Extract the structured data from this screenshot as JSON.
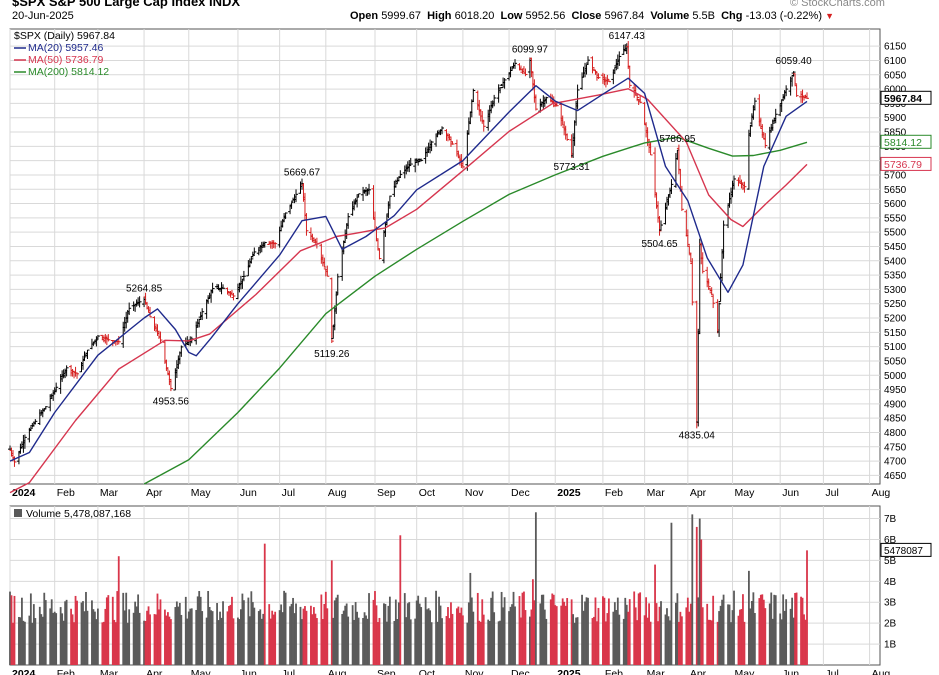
{
  "header": {
    "symbol_title": "$SPX S&P 500 Large Cap Index INDX",
    "date": "20-Jun-2025",
    "open_label": "Open",
    "open": "5999.67",
    "high_label": "High",
    "high": "6018.20",
    "low_label": "Low",
    "low": "5952.56",
    "close_label": "Close",
    "close": "5967.84",
    "volume_label": "Volume",
    "volume": "5.5B",
    "chg_label": "Chg",
    "chg": "-13.03 (-0.22%)",
    "watermark": "© StockCharts.com"
  },
  "colors": {
    "up": "#000000",
    "down": "#d62020",
    "ma20": "#1f2a8c",
    "ma50": "#d6364f",
    "ma200": "#2a8a2a",
    "grid": "#d9d9d9",
    "vol_up": "#5a5a5a",
    "vol_down": "#d9364a"
  },
  "chart_data": [
    {
      "type": "candlestick",
      "legend": [
        {
          "key": "price",
          "label": "$SPX (Daily) 5967.84",
          "color": "#000000"
        },
        {
          "key": "ma20",
          "label": "MA(20) 5957.46",
          "color": "#1f2a8c"
        },
        {
          "key": "ma50",
          "label": "MA(50) 5736.79",
          "color": "#d6364f"
        },
        {
          "key": "ma200",
          "label": "MA(200) 5814.12",
          "color": "#2a8a2a"
        }
      ],
      "legend_position": "top-left",
      "grid": true,
      "x_ticks": [
        "2024",
        "Feb",
        "Mar",
        "Apr",
        "May",
        "Jun",
        "Jul",
        "Aug",
        "Sep",
        "Oct",
        "Nov",
        "Dec",
        "2025",
        "Feb",
        "Mar",
        "Apr",
        "May",
        "Jun",
        "Jul",
        "Aug"
      ],
      "x_tick_dates": [
        "2024-01-02",
        "2024-02-01",
        "2024-03-01",
        "2024-04-01",
        "2024-05-01",
        "2024-06-03",
        "2024-07-01",
        "2024-08-01",
        "2024-09-03",
        "2024-10-01",
        "2024-11-01",
        "2024-12-02",
        "2025-01-02",
        "2025-02-03",
        "2025-03-03",
        "2025-04-01",
        "2025-05-01",
        "2025-06-02",
        "2025-07-01",
        "2025-08-01"
      ],
      "x_range": [
        "2024-01-02",
        "2025-08-08"
      ],
      "y_ticks": [
        4650,
        4700,
        4750,
        4800,
        4850,
        4900,
        4950,
        5000,
        5050,
        5100,
        5150,
        5200,
        5250,
        5300,
        5350,
        5400,
        5450,
        5500,
        5550,
        5600,
        5650,
        5700,
        5750,
        5800,
        5850,
        5900,
        5950,
        6000,
        6050,
        6100,
        6150
      ],
      "y_range": [
        4620,
        6210
      ],
      "price_path": [
        [
          "2024-01-02",
          4742
        ],
        [
          "2024-01-05",
          4697
        ],
        [
          "2024-01-12",
          4783
        ],
        [
          "2024-01-19",
          4839
        ],
        [
          "2024-01-26",
          4890
        ],
        [
          "2024-02-02",
          4958
        ],
        [
          "2024-02-09",
          5026
        ],
        [
          "2024-02-16",
          5005
        ],
        [
          "2024-02-23",
          5088
        ],
        [
          "2024-03-01",
          5137
        ],
        [
          "2024-03-08",
          5124
        ],
        [
          "2024-03-15",
          5117
        ],
        [
          "2024-03-22",
          5234
        ],
        [
          "2024-03-28",
          5254
        ],
        [
          "2024-04-01",
          5264.85
        ],
        [
          "2024-04-05",
          5204
        ],
        [
          "2024-04-12",
          5123
        ],
        [
          "2024-04-19",
          4953.56
        ],
        [
          "2024-04-26",
          5099
        ],
        [
          "2024-05-03",
          5127
        ],
        [
          "2024-05-10",
          5222
        ],
        [
          "2024-05-17",
          5303
        ],
        [
          "2024-05-24",
          5304
        ],
        [
          "2024-05-31",
          5277
        ],
        [
          "2024-06-07",
          5346
        ],
        [
          "2024-06-14",
          5431
        ],
        [
          "2024-06-21",
          5464
        ],
        [
          "2024-06-28",
          5460
        ],
        [
          "2024-07-05",
          5567
        ],
        [
          "2024-07-16",
          5669.67
        ],
        [
          "2024-07-19",
          5505
        ],
        [
          "2024-07-26",
          5459
        ],
        [
          "2024-08-02",
          5346
        ],
        [
          "2024-08-05",
          5119.26
        ],
        [
          "2024-08-09",
          5344
        ],
        [
          "2024-08-16",
          5554
        ],
        [
          "2024-08-23",
          5634
        ],
        [
          "2024-08-30",
          5648
        ],
        [
          "2024-09-06",
          5408
        ],
        [
          "2024-09-13",
          5626
        ],
        [
          "2024-09-20",
          5702
        ],
        [
          "2024-09-27",
          5738
        ],
        [
          "2024-10-04",
          5751
        ],
        [
          "2024-10-11",
          5815
        ],
        [
          "2024-10-18",
          5864
        ],
        [
          "2024-10-25",
          5808
        ],
        [
          "2024-11-01",
          5728
        ],
        [
          "2024-11-08",
          5995
        ],
        [
          "2024-11-15",
          5870
        ],
        [
          "2024-11-22",
          5969
        ],
        [
          "2024-11-29",
          6032
        ],
        [
          "2024-12-06",
          6090
        ],
        [
          "2024-12-13",
          6051
        ],
        [
          "2024-12-16",
          6099.97
        ],
        [
          "2024-12-20",
          5930
        ],
        [
          "2024-12-27",
          5970
        ],
        [
          "2025-01-03",
          5942
        ],
        [
          "2025-01-13",
          5773.31
        ],
        [
          "2025-01-17",
          5997
        ],
        [
          "2025-01-24",
          6101
        ],
        [
          "2025-01-31",
          6040
        ],
        [
          "2025-02-07",
          6026
        ],
        [
          "2025-02-14",
          6114
        ],
        [
          "2025-02-19",
          6147.43
        ],
        [
          "2025-02-21",
          6013
        ],
        [
          "2025-02-28",
          5954
        ],
        [
          "2025-03-07",
          5770
        ],
        [
          "2025-03-13",
          5504.65
        ],
        [
          "2025-03-21",
          5667
        ],
        [
          "2025-03-25",
          5786.95
        ],
        [
          "2025-03-28",
          5580
        ],
        [
          "2025-04-03",
          5396
        ],
        [
          "2025-04-07",
          4835.04
        ],
        [
          "2025-04-09",
          5456
        ],
        [
          "2025-04-11",
          5363
        ],
        [
          "2025-04-17",
          5283
        ],
        [
          "2025-04-21",
          5158
        ],
        [
          "2025-04-25",
          5525
        ],
        [
          "2025-05-02",
          5686
        ],
        [
          "2025-05-09",
          5659
        ],
        [
          "2025-05-12",
          5844
        ],
        [
          "2025-05-16",
          5958
        ],
        [
          "2025-05-23",
          5803
        ],
        [
          "2025-05-30",
          5912
        ],
        [
          "2025-06-06",
          6000
        ],
        [
          "2025-06-11",
          6059.4
        ],
        [
          "2025-06-13",
          5977
        ],
        [
          "2025-06-20",
          5967.84
        ]
      ],
      "ma20_path": [
        [
          "2024-01-02",
          4700
        ],
        [
          "2024-01-15",
          4730
        ],
        [
          "2024-02-01",
          4870
        ],
        [
          "2024-03-01",
          5070
        ],
        [
          "2024-04-01",
          5200
        ],
        [
          "2024-04-10",
          5232
        ],
        [
          "2024-04-22",
          5160
        ],
        [
          "2024-05-01",
          5080
        ],
        [
          "2024-05-06",
          5068
        ],
        [
          "2024-05-16",
          5130
        ],
        [
          "2024-06-03",
          5250
        ],
        [
          "2024-07-01",
          5420
        ],
        [
          "2024-07-16",
          5540
        ],
        [
          "2024-08-01",
          5555
        ],
        [
          "2024-08-12",
          5440
        ],
        [
          "2024-08-28",
          5485
        ],
        [
          "2024-09-16",
          5558
        ],
        [
          "2024-10-01",
          5648
        ],
        [
          "2024-11-01",
          5750
        ],
        [
          "2024-12-02",
          5920
        ],
        [
          "2024-12-20",
          6012
        ],
        [
          "2025-01-02",
          5958
        ],
        [
          "2025-01-17",
          5925
        ],
        [
          "2025-02-03",
          5982
        ],
        [
          "2025-02-20",
          6038
        ],
        [
          "2025-03-03",
          5985
        ],
        [
          "2025-03-17",
          5730
        ],
        [
          "2025-04-01",
          5610
        ],
        [
          "2025-04-14",
          5410
        ],
        [
          "2025-04-28",
          5290
        ],
        [
          "2025-05-08",
          5385
        ],
        [
          "2025-05-22",
          5730
        ],
        [
          "2025-06-06",
          5905
        ],
        [
          "2025-06-20",
          5957
        ]
      ],
      "ma50_path": [
        [
          "2024-01-02",
          4590
        ],
        [
          "2024-01-15",
          4625
        ],
        [
          "2024-02-15",
          4842
        ],
        [
          "2024-03-15",
          5022
        ],
        [
          "2024-04-15",
          5122
        ],
        [
          "2024-05-01",
          5120
        ],
        [
          "2024-05-15",
          5144
        ],
        [
          "2024-06-15",
          5282
        ],
        [
          "2024-07-15",
          5435
        ],
        [
          "2024-08-08",
          5485
        ],
        [
          "2024-08-20",
          5495
        ],
        [
          "2024-09-10",
          5515
        ],
        [
          "2024-10-01",
          5580
        ],
        [
          "2024-11-01",
          5715
        ],
        [
          "2024-12-02",
          5852
        ],
        [
          "2024-12-31",
          5949
        ],
        [
          "2025-01-31",
          5979
        ],
        [
          "2025-02-20",
          6001
        ],
        [
          "2025-03-05",
          5964
        ],
        [
          "2025-03-31",
          5815
        ],
        [
          "2025-04-15",
          5630
        ],
        [
          "2025-04-30",
          5544
        ],
        [
          "2025-05-08",
          5520
        ],
        [
          "2025-05-23",
          5597
        ],
        [
          "2025-06-06",
          5665
        ],
        [
          "2025-06-20",
          5736.79
        ]
      ],
      "ma200_path": [
        [
          "2024-04-01",
          4620
        ],
        [
          "2024-05-01",
          4705
        ],
        [
          "2024-06-03",
          4870
        ],
        [
          "2024-07-01",
          5025
        ],
        [
          "2024-08-01",
          5215
        ],
        [
          "2024-09-03",
          5346
        ],
        [
          "2024-10-01",
          5440
        ],
        [
          "2024-11-01",
          5538
        ],
        [
          "2024-12-02",
          5632
        ],
        [
          "2025-01-02",
          5700
        ],
        [
          "2025-02-03",
          5765
        ],
        [
          "2025-03-03",
          5812
        ],
        [
          "2025-03-25",
          5832
        ],
        [
          "2025-04-15",
          5793
        ],
        [
          "2025-05-01",
          5766
        ],
        [
          "2025-05-15",
          5768
        ],
        [
          "2025-06-02",
          5786
        ],
        [
          "2025-06-20",
          5814.12
        ]
      ],
      "annotations": [
        {
          "date": "2024-04-01",
          "value": 5264.85,
          "label": "5264.85",
          "pos": "above"
        },
        {
          "date": "2024-04-19",
          "value": 4953.56,
          "label": "4953.56",
          "pos": "below"
        },
        {
          "date": "2024-07-16",
          "value": 5669.67,
          "label": "5669.67",
          "pos": "above"
        },
        {
          "date": "2024-08-05",
          "value": 5119.26,
          "label": "5119.26",
          "pos": "below"
        },
        {
          "date": "2024-12-16",
          "value": 6099.97,
          "label": "6099.97",
          "pos": "above"
        },
        {
          "date": "2025-01-13",
          "value": 5773.31,
          "label": "5773.31",
          "pos": "below"
        },
        {
          "date": "2025-02-19",
          "value": 6147.43,
          "label": "6147.43",
          "pos": "above"
        },
        {
          "date": "2025-03-13",
          "value": 5504.65,
          "label": "5504.65",
          "pos": "below"
        },
        {
          "date": "2025-03-25",
          "value": 5786.95,
          "label": "5786.95",
          "pos": "above"
        },
        {
          "date": "2025-04-07",
          "value": 4835.04,
          "label": "4835.04",
          "pos": "below"
        },
        {
          "date": "2025-06-11",
          "value": 6059.4,
          "label": "6059.40",
          "pos": "above"
        }
      ],
      "right_tags": [
        {
          "value": 5967.84,
          "label": "5967.84",
          "color": "#000000",
          "bold": true
        },
        {
          "value": 5814.12,
          "label": "5814.12",
          "color": "#2a8a2a",
          "bold": false
        },
        {
          "value": 5736.79,
          "label": "5736.79",
          "color": "#d6364f",
          "bold": false
        }
      ]
    },
    {
      "type": "bar",
      "legend": [
        {
          "label": "Volume 5,478,087,168",
          "color": "#5a5a5a"
        }
      ],
      "legend_position": "top-left",
      "grid": true,
      "y_ticks": [
        {
          "v": 1,
          "label": "1B"
        },
        {
          "v": 2,
          "label": "2B"
        },
        {
          "v": 3,
          "label": "3B"
        },
        {
          "v": 4,
          "label": "4B"
        },
        {
          "v": 5,
          "label": "5B"
        },
        {
          "v": 6,
          "label": "6B"
        },
        {
          "v": 7,
          "label": "7B"
        }
      ],
      "y_unit": "billions of shares",
      "y_range": [
        0,
        7.6
      ],
      "baseline": 2.8,
      "spikes": [
        {
          "date": "2024-03-15",
          "value": 5.2,
          "dir": "down"
        },
        {
          "date": "2024-06-21",
          "value": 5.8,
          "dir": "down"
        },
        {
          "date": "2024-08-05",
          "value": 5.0,
          "dir": "down"
        },
        {
          "date": "2024-09-20",
          "value": 6.2,
          "dir": "down"
        },
        {
          "date": "2024-11-06",
          "value": 4.4,
          "dir": "up"
        },
        {
          "date": "2024-12-18",
          "value": 4.1,
          "dir": "down"
        },
        {
          "date": "2024-12-20",
          "value": 7.3,
          "dir": "up"
        },
        {
          "date": "2025-03-10",
          "value": 4.8,
          "dir": "down"
        },
        {
          "date": "2025-03-21",
          "value": 6.8,
          "dir": "up"
        },
        {
          "date": "2025-04-04",
          "value": 7.2,
          "dir": "up"
        },
        {
          "date": "2025-04-07",
          "value": 6.6,
          "dir": "down"
        },
        {
          "date": "2025-04-09",
          "value": 7.0,
          "dir": "up"
        },
        {
          "date": "2025-04-10",
          "value": 6.0,
          "dir": "down"
        },
        {
          "date": "2025-05-12",
          "value": 4.5,
          "dir": "up"
        },
        {
          "date": "2025-06-20",
          "value": 5.48,
          "dir": "down"
        }
      ],
      "right_tag": {
        "value": 5.478,
        "label": "5478087"
      },
      "x_ticks": [
        "2024",
        "Feb",
        "Mar",
        "Apr",
        "May",
        "Jun",
        "Jul",
        "Aug",
        "Sep",
        "Oct",
        "Nov",
        "Dec",
        "2025",
        "Feb",
        "Mar",
        "Apr",
        "May",
        "Jun",
        "Jul",
        "Aug"
      ]
    }
  ]
}
